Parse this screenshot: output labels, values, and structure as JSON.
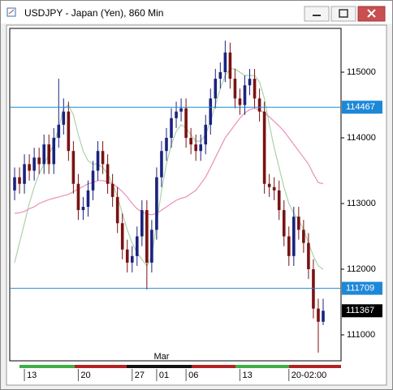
{
  "chart_data": {
    "type": "candlestick",
    "title": "USDJPY - Japan (Yen), 860 Min",
    "categories": [
      null,
      null,
      "13",
      null,
      null,
      null,
      null,
      null,
      null,
      null,
      null,
      null,
      null,
      "20",
      null,
      null,
      null,
      null,
      null,
      null,
      null,
      null,
      null,
      null,
      "27",
      null,
      null,
      null,
      null,
      "01",
      null,
      null,
      null,
      null,
      null,
      "06",
      null,
      null,
      null,
      null,
      null,
      null,
      null,
      null,
      null,
      null,
      "13",
      null,
      null,
      null,
      null,
      null,
      null,
      null,
      null,
      null,
      "20-02:00",
      null,
      null,
      null,
      null,
      null,
      null,
      null
    ],
    "month_categories": [
      null,
      null,
      null,
      null,
      null,
      null,
      null,
      null,
      null,
      null,
      null,
      null,
      null,
      null,
      null,
      null,
      null,
      null,
      null,
      null,
      null,
      null,
      null,
      null,
      null,
      null,
      null,
      null,
      null,
      null,
      "Mar",
      null,
      null,
      null,
      null,
      null,
      null,
      null,
      null,
      null,
      null,
      null,
      null,
      null,
      null,
      null,
      null,
      null,
      null,
      null,
      null,
      null,
      null,
      null,
      null,
      null,
      null,
      null,
      null,
      null,
      null,
      null,
      null,
      null
    ],
    "open": [
      113200,
      113400,
      113300,
      113600,
      113500,
      113700,
      113600,
      113900,
      113600,
      114000,
      114200,
      114400,
      113800,
      113300,
      112900,
      112950,
      113200,
      113500,
      113800,
      113600,
      113300,
      113100,
      112700,
      112300,
      112100,
      112200,
      112500,
      112900,
      112100,
      112600,
      113400,
      113800,
      114000,
      114300,
      114400,
      114450,
      114000,
      113900,
      113800,
      113900,
      114200,
      114600,
      114900,
      115000,
      115300,
      114900,
      114600,
      114500,
      114800,
      114900,
      114600,
      114400,
      113300,
      113250,
      113200,
      112900,
      112500,
      112200,
      112800,
      112600,
      112400,
      112000,
      111400,
      111200
    ],
    "high": [
      113550,
      113550,
      113750,
      113750,
      113850,
      113850,
      114050,
      114050,
      114150,
      114900,
      114600,
      114550,
      113950,
      113450,
      113100,
      113350,
      113650,
      113950,
      113950,
      113750,
      113450,
      113250,
      112850,
      112450,
      112350,
      112650,
      113050,
      113050,
      112750,
      113550,
      113950,
      114150,
      114450,
      114550,
      114600,
      114600,
      114150,
      114050,
      114050,
      114350,
      114750,
      115050,
      115150,
      115480,
      115450,
      115050,
      114750,
      114950,
      115050,
      115050,
      114750,
      114550,
      113450,
      113400,
      113350,
      113050,
      112650,
      112950,
      112950,
      112750,
      112550,
      112150,
      111550,
      111550
    ],
    "low": [
      113050,
      113150,
      113150,
      113350,
      113350,
      113450,
      113450,
      113450,
      113450,
      113850,
      114050,
      113650,
      113150,
      112750,
      112750,
      112800,
      113050,
      113350,
      113450,
      113150,
      112950,
      112550,
      112150,
      111950,
      111950,
      112050,
      112350,
      111690,
      111950,
      112450,
      113250,
      113650,
      113850,
      114150,
      114250,
      113850,
      113750,
      113650,
      113650,
      113750,
      114050,
      114450,
      114750,
      114850,
      114750,
      114450,
      114350,
      114350,
      114650,
      114450,
      114250,
      113150,
      113100,
      113050,
      112750,
      112350,
      112050,
      112050,
      112450,
      112250,
      111850,
      111250,
      110730,
      111150
    ],
    "close": [
      113400,
      113300,
      113600,
      113500,
      113700,
      113600,
      113900,
      113600,
      114000,
      114200,
      114400,
      113800,
      113300,
      112900,
      112950,
      113200,
      113500,
      113800,
      113600,
      113300,
      113100,
      112700,
      112300,
      112100,
      112200,
      112500,
      112900,
      112100,
      112600,
      113400,
      113800,
      114000,
      114300,
      114400,
      114450,
      114000,
      113900,
      113800,
      113900,
      114200,
      114600,
      114900,
      115000,
      115300,
      114900,
      114600,
      114500,
      114800,
      114900,
      114600,
      114400,
      113300,
      113250,
      113200,
      112900,
      112500,
      112200,
      112800,
      112600,
      112400,
      112000,
      111400,
      111200,
      111367
    ],
    "up_color": "#1a237e",
    "down_color": "#7a1212",
    "overlays": [
      {
        "color": "#a9d3a9",
        "values": [
          112100,
          112400,
          112700,
          113000,
          113250,
          113450,
          113600,
          113750,
          113900,
          114150,
          114450,
          114500,
          114350,
          114050,
          113800,
          113650,
          113600,
          113600,
          113550,
          113450,
          113300,
          113100,
          112850,
          112600,
          112400,
          112250,
          112150,
          112050,
          112200,
          112700,
          113200,
          113600,
          113900,
          114100,
          114200,
          114150,
          114050,
          113950,
          113950,
          114050,
          114250,
          114500,
          114750,
          114950,
          115050,
          115050,
          115000,
          114950,
          114950,
          114950,
          114850,
          114600,
          114200,
          113850,
          113550,
          113250,
          113000,
          112850,
          112750,
          112600,
          112400,
          112200,
          112050,
          112000
        ]
      },
      {
        "color": "#e98fb8",
        "values": [
          112850,
          112860,
          112880,
          112920,
          112950,
          113000,
          113030,
          113060,
          113080,
          113100,
          113120,
          113140,
          113180,
          113220,
          113260,
          113300,
          113320,
          113350,
          113350,
          113330,
          113300,
          113250,
          113180,
          113100,
          113000,
          112920,
          112870,
          112840,
          112830,
          112850,
          112900,
          112950,
          113000,
          113050,
          113080,
          113100,
          113150,
          113200,
          113300,
          113400,
          113550,
          113700,
          113850,
          114000,
          114100,
          114200,
          114300,
          114380,
          114430,
          114450,
          114420,
          114380,
          114320,
          114250,
          114180,
          114100,
          114000,
          113900,
          113800,
          113700,
          113600,
          113450,
          113320,
          113300
        ]
      }
    ],
    "hlines": [
      114467,
      111709
    ],
    "hline_color": "#1e88d8",
    "last_price": 111367,
    "ylim": [
      110605,
      115667
    ],
    "yticks": [
      111000,
      112000,
      113000,
      114000,
      115000
    ]
  }
}
